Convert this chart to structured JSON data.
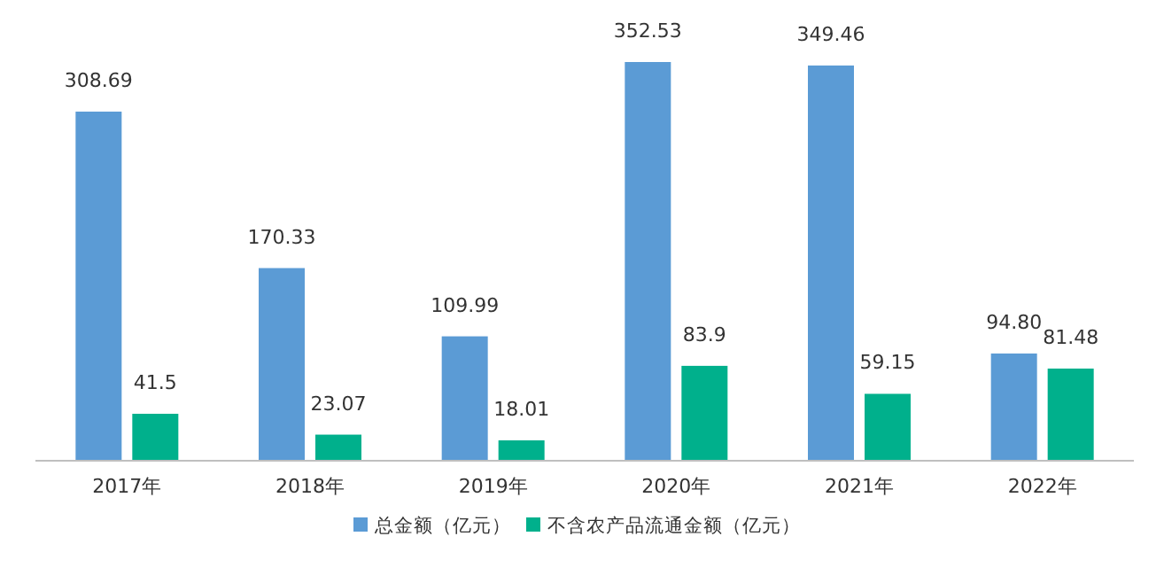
{
  "chart_data": {
    "type": "bar",
    "categories": [
      "2017年",
      "2018年",
      "2019年",
      "2020年",
      "2021年",
      "2022年"
    ],
    "series": [
      {
        "name": "总金额（亿元）",
        "color": "#5b9bd5",
        "values": [
          308.69,
          170.33,
          109.99,
          352.53,
          349.46,
          94.8
        ],
        "value_labels": [
          "308.69",
          "170.33",
          "109.99",
          "352.53",
          "349.46",
          "94.80"
        ]
      },
      {
        "name": "不含农产品流通金额（亿元）",
        "color": "#00b08c",
        "values": [
          41.5,
          23.07,
          18.01,
          83.9,
          59.15,
          81.48
        ],
        "value_labels": [
          "41.5",
          "23.07",
          "18.01",
          "83.9",
          "59.15",
          "81.48"
        ]
      }
    ],
    "legend": "bottom",
    "grid": false
  }
}
